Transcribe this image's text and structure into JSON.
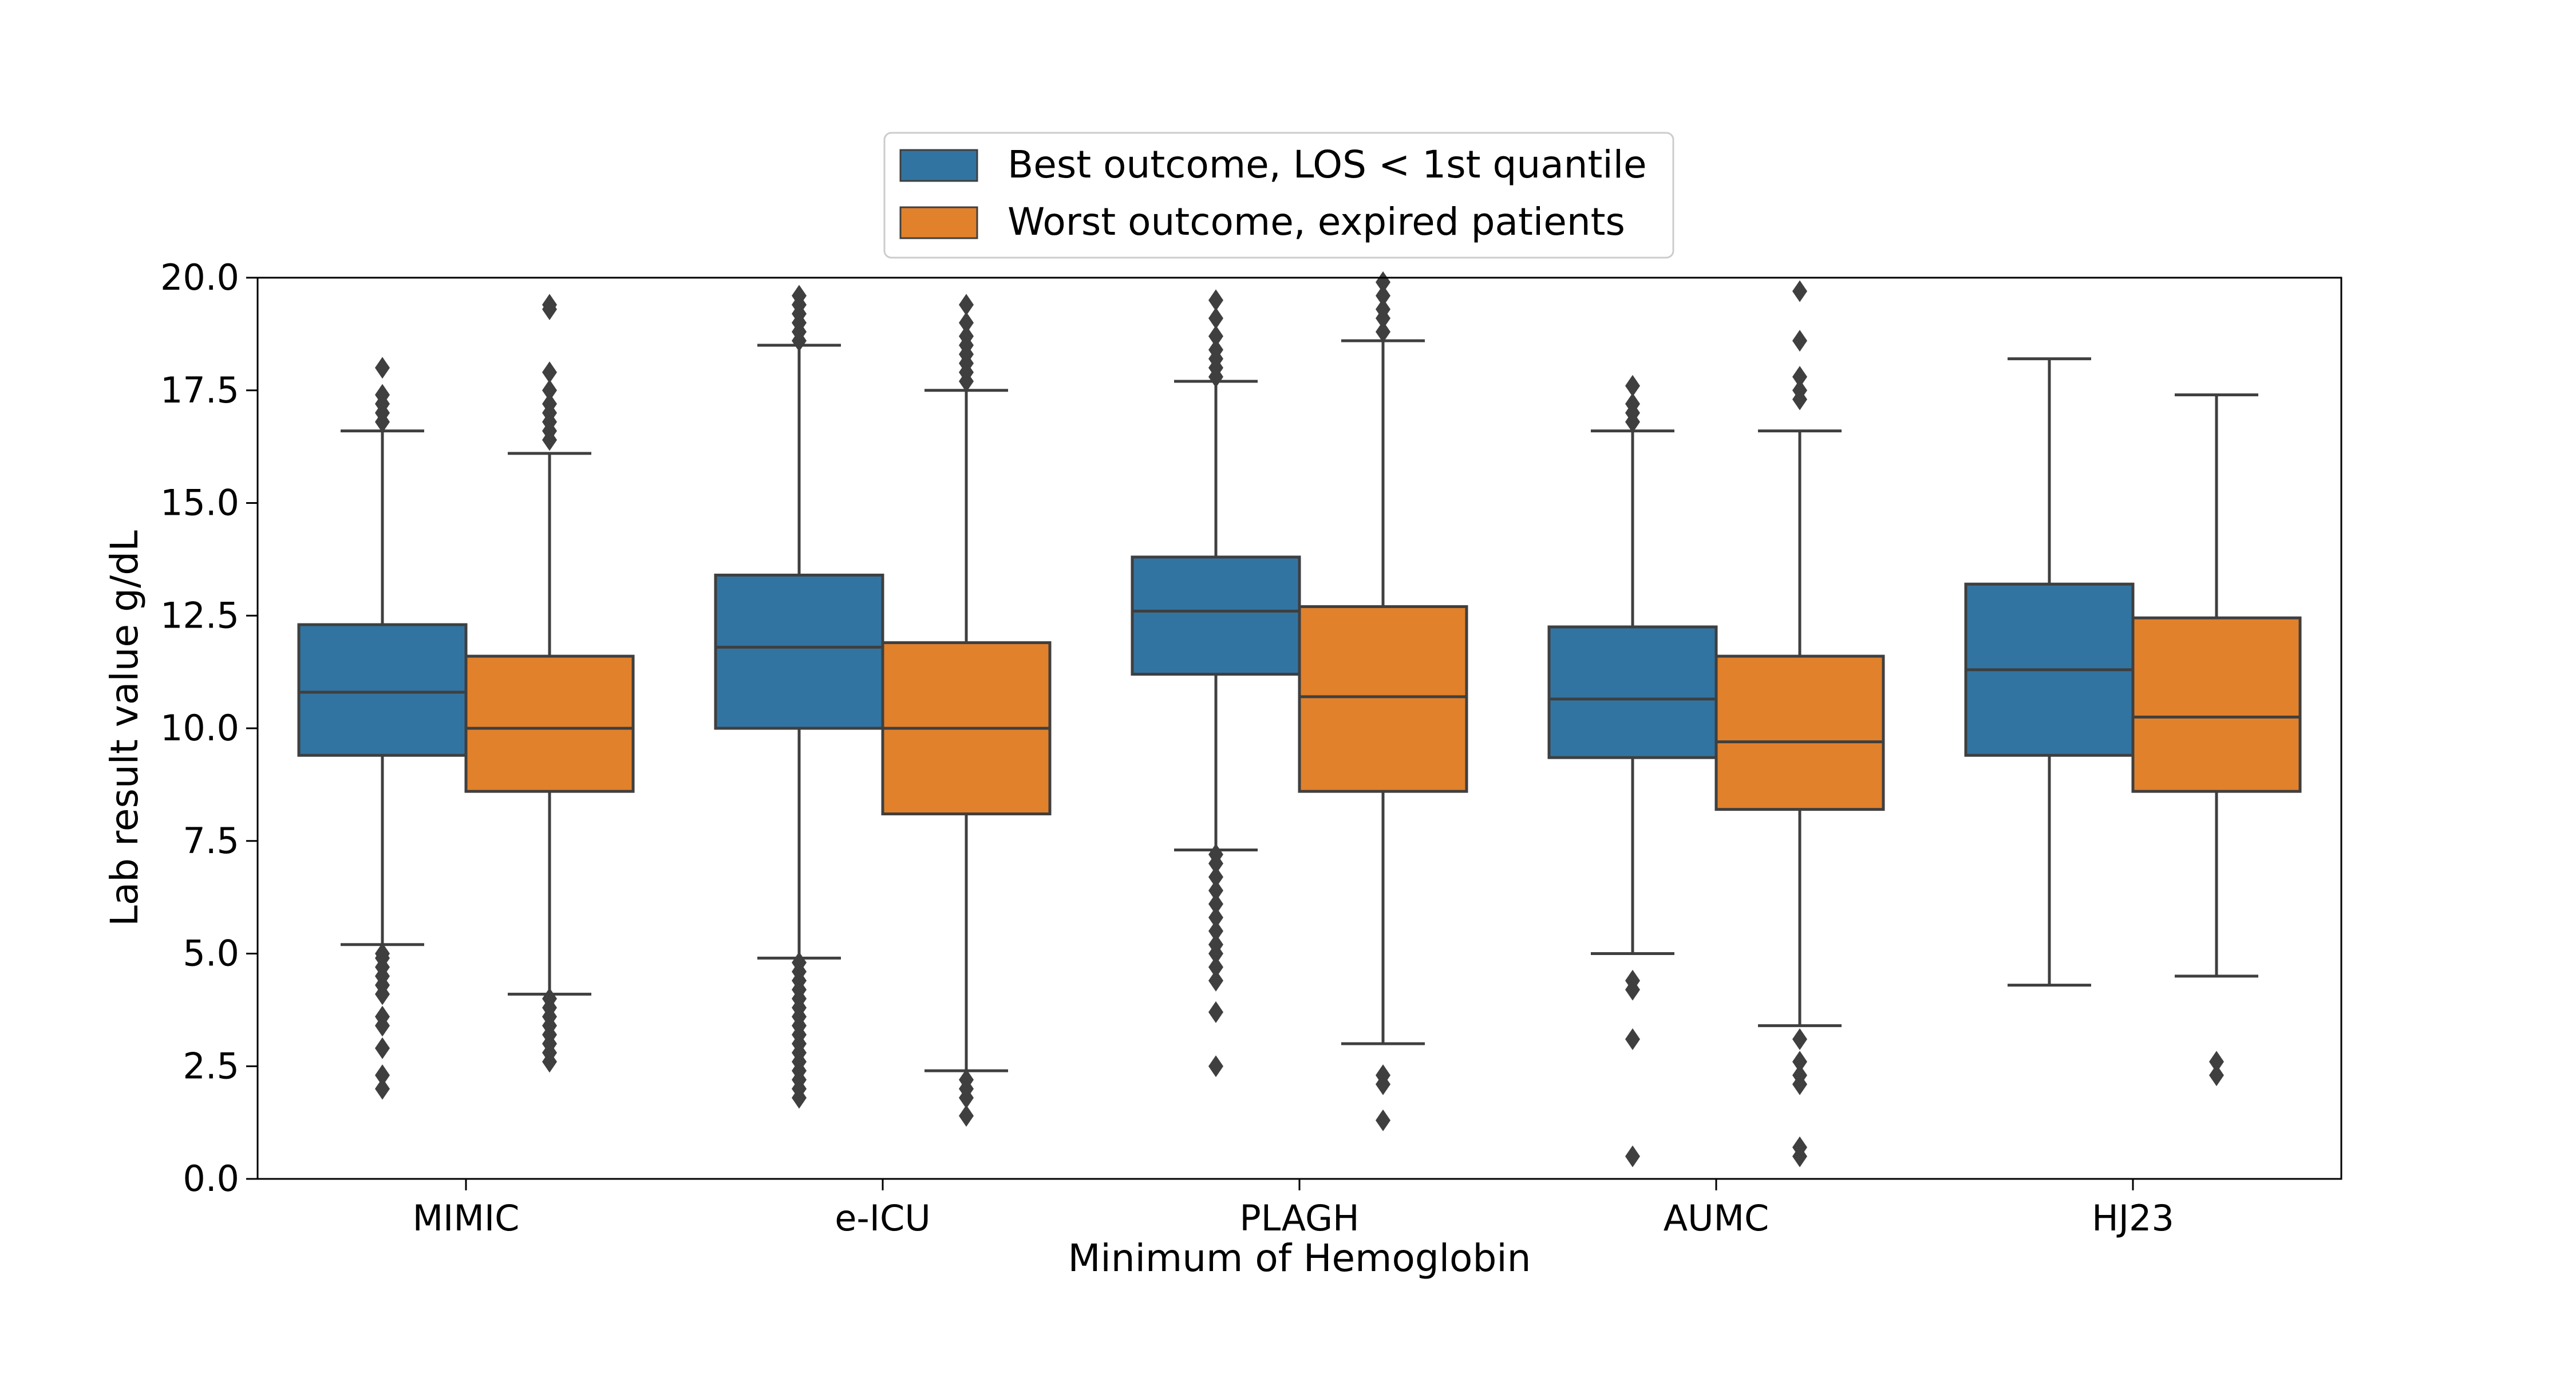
{
  "chart_data": {
    "type": "box",
    "xlabel": "Minimum of Hemoglobin",
    "ylabel": "Lab result value g/dL",
    "ylim": [
      0,
      20
    ],
    "yticks": [
      "0.0",
      "2.5",
      "5.0",
      "7.5",
      "10.0",
      "12.5",
      "15.0",
      "17.5",
      "20.0"
    ],
    "categories": [
      "MIMIC",
      "e-ICU",
      "PLAGH",
      "AUMC",
      "HJ23"
    ],
    "legend_position": "top-center",
    "grid": false,
    "series": [
      {
        "name": "Best outcome, LOS < 1st quantile",
        "color": "#3274a1",
        "boxes": [
          {
            "whisker_low": 5.2,
            "q1": 9.4,
            "median": 10.8,
            "q3": 12.3,
            "whisker_high": 16.6,
            "outliers": [
              2.0,
              2.3,
              2.9,
              3.4,
              3.6,
              4.1,
              4.3,
              4.5,
              4.7,
              4.9,
              5.0,
              16.8,
              17.0,
              17.2,
              17.4,
              18.0
            ]
          },
          {
            "whisker_low": 4.9,
            "q1": 10.0,
            "median": 11.8,
            "q3": 13.4,
            "whisker_high": 18.5,
            "outliers": [
              1.8,
              2.0,
              2.2,
              2.4,
              2.6,
              2.8,
              3.0,
              3.2,
              3.4,
              3.6,
              3.8,
              4.0,
              4.2,
              4.4,
              4.6,
              4.8,
              18.6,
              18.8,
              19.0,
              19.2,
              19.4,
              19.6
            ]
          },
          {
            "whisker_low": 7.3,
            "q1": 11.2,
            "median": 12.6,
            "q3": 13.8,
            "whisker_high": 17.7,
            "outliers": [
              2.5,
              3.7,
              4.4,
              4.7,
              5.0,
              5.2,
              5.5,
              5.8,
              6.1,
              6.4,
              6.7,
              7.0,
              7.2,
              17.8,
              18.0,
              18.2,
              18.4,
              18.7,
              19.1,
              19.5
            ]
          },
          {
            "whisker_low": 5.0,
            "q1": 9.35,
            "median": 10.65,
            "q3": 12.25,
            "whisker_high": 16.6,
            "outliers": [
              0.5,
              3.1,
              4.2,
              4.4,
              16.8,
              17.0,
              17.2,
              17.6
            ]
          },
          {
            "whisker_low": 4.3,
            "q1": 9.4,
            "median": 11.3,
            "q3": 13.2,
            "whisker_high": 18.2,
            "outliers": []
          }
        ]
      },
      {
        "name": "Worst outcome, expired patients",
        "color": "#e1812c",
        "boxes": [
          {
            "whisker_low": 4.1,
            "q1": 8.6,
            "median": 10.0,
            "q3": 11.6,
            "whisker_high": 16.1,
            "outliers": [
              2.6,
              2.8,
              3.0,
              3.2,
              3.4,
              3.6,
              3.8,
              4.0,
              16.4,
              16.6,
              16.8,
              17.0,
              17.2,
              17.5,
              17.9,
              19.3,
              19.4
            ]
          },
          {
            "whisker_low": 2.4,
            "q1": 8.1,
            "median": 10.0,
            "q3": 11.9,
            "whisker_high": 17.5,
            "outliers": [
              1.4,
              1.8,
              2.0,
              2.2,
              17.7,
              17.9,
              18.1,
              18.3,
              18.5,
              18.7,
              19.0,
              19.4
            ]
          },
          {
            "whisker_low": 3.0,
            "q1": 8.6,
            "median": 10.7,
            "q3": 12.7,
            "whisker_high": 18.6,
            "outliers": [
              1.3,
              2.1,
              2.3,
              18.8,
              19.1,
              19.3,
              19.6,
              19.9
            ]
          },
          {
            "whisker_low": 3.4,
            "q1": 8.2,
            "median": 9.7,
            "q3": 11.6,
            "whisker_high": 16.6,
            "outliers": [
              0.5,
              0.7,
              2.1,
              2.3,
              2.6,
              3.1,
              17.3,
              17.5,
              17.8,
              18.6,
              19.7
            ]
          },
          {
            "whisker_low": 4.5,
            "q1": 8.6,
            "median": 10.25,
            "q3": 12.45,
            "whisker_high": 17.4,
            "outliers": [
              2.3,
              2.6
            ]
          }
        ]
      }
    ]
  }
}
